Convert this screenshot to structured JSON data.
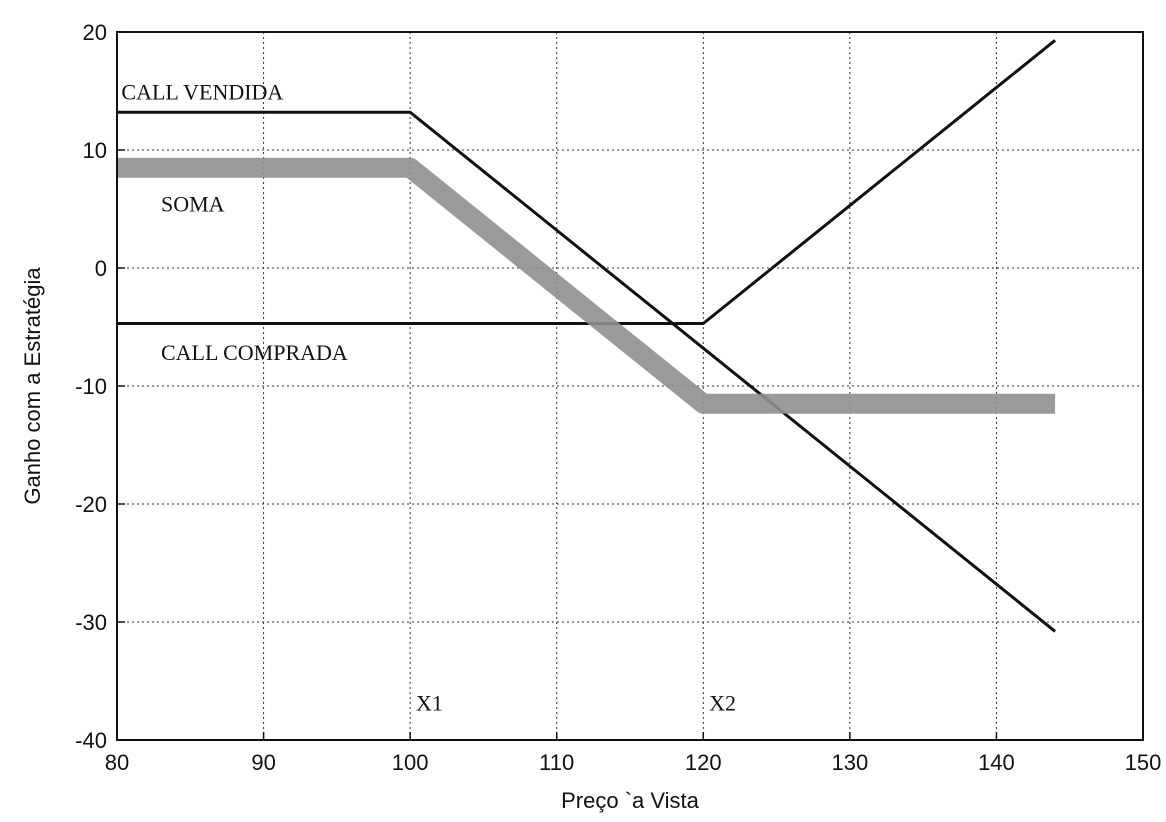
{
  "chart_data": {
    "type": "line",
    "title": "",
    "xlabel": "Preço `a Vista",
    "ylabel": "Ganho com a Estratégia",
    "xlim": [
      80,
      150
    ],
    "ylim": [
      -40,
      20
    ],
    "xticks": [
      80,
      90,
      100,
      110,
      120,
      130,
      140,
      150
    ],
    "yticks": [
      -40,
      -30,
      -20,
      -10,
      0,
      10,
      20
    ],
    "grid": true,
    "series": [
      {
        "name": "CALL VENDIDA",
        "color": "#111111",
        "x": [
          80,
          100,
          144
        ],
        "y": [
          13.2,
          13.2,
          -30.8
        ]
      },
      {
        "name": "CALL COMPRADA",
        "color": "#111111",
        "x": [
          80,
          120,
          144
        ],
        "y": [
          -4.7,
          -4.7,
          19.3
        ]
      },
      {
        "name": "SOMA",
        "color": "#8f8f8f",
        "x": [
          80,
          100,
          120,
          144
        ],
        "y": [
          8.5,
          8.5,
          -11.5,
          -11.5
        ]
      }
    ],
    "annotations": [
      {
        "text": "CALL VENDIDA",
        "x": 80.3,
        "y": 14.3
      },
      {
        "text": "SOMA",
        "x": 83.0,
        "y": 4.8
      },
      {
        "text": "CALL COMPRADA",
        "x": 83.0,
        "y": -7.8
      },
      {
        "text": "X1",
        "x": 100.4,
        "y": -37.5
      },
      {
        "text": "X2",
        "x": 120.4,
        "y": -37.5
      }
    ]
  }
}
